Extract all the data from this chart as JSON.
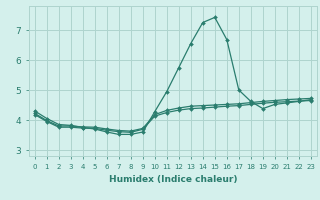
{
  "xlabel": "Humidex (Indice chaleur)",
  "x": [
    0,
    1,
    2,
    3,
    4,
    5,
    6,
    7,
    8,
    9,
    10,
    11,
    12,
    13,
    14,
    15,
    16,
    17,
    18,
    19,
    20,
    21,
    22,
    23
  ],
  "line_max": [
    4.3,
    4.05,
    3.85,
    3.82,
    3.75,
    3.7,
    3.6,
    3.52,
    3.52,
    3.6,
    4.28,
    4.95,
    5.75,
    6.55,
    7.25,
    7.42,
    6.68,
    5.0,
    4.62,
    4.38,
    4.52,
    4.57,
    4.62,
    4.68
  ],
  "line_mean": [
    4.22,
    3.98,
    3.8,
    3.8,
    3.77,
    3.76,
    3.7,
    3.65,
    3.63,
    3.72,
    4.18,
    4.32,
    4.4,
    4.46,
    4.48,
    4.5,
    4.52,
    4.54,
    4.58,
    4.62,
    4.65,
    4.68,
    4.7,
    4.72
  ],
  "line_min": [
    4.18,
    3.95,
    3.76,
    3.76,
    3.73,
    3.72,
    3.66,
    3.61,
    3.59,
    3.69,
    4.13,
    4.25,
    4.33,
    4.38,
    4.4,
    4.43,
    4.46,
    4.48,
    4.52,
    4.56,
    4.59,
    4.61,
    4.63,
    4.65
  ],
  "line_color": "#2a7d6e",
  "bg_color": "#d4f0ec",
  "grid_color": "#aed4ce",
  "ylim": [
    2.8,
    7.8
  ],
  "yticks": [
    3,
    4,
    5,
    6,
    7
  ],
  "xticks": [
    0,
    1,
    2,
    3,
    4,
    5,
    6,
    7,
    8,
    9,
    10,
    11,
    12,
    13,
    14,
    15,
    16,
    17,
    18,
    19,
    20,
    21,
    22,
    23
  ]
}
